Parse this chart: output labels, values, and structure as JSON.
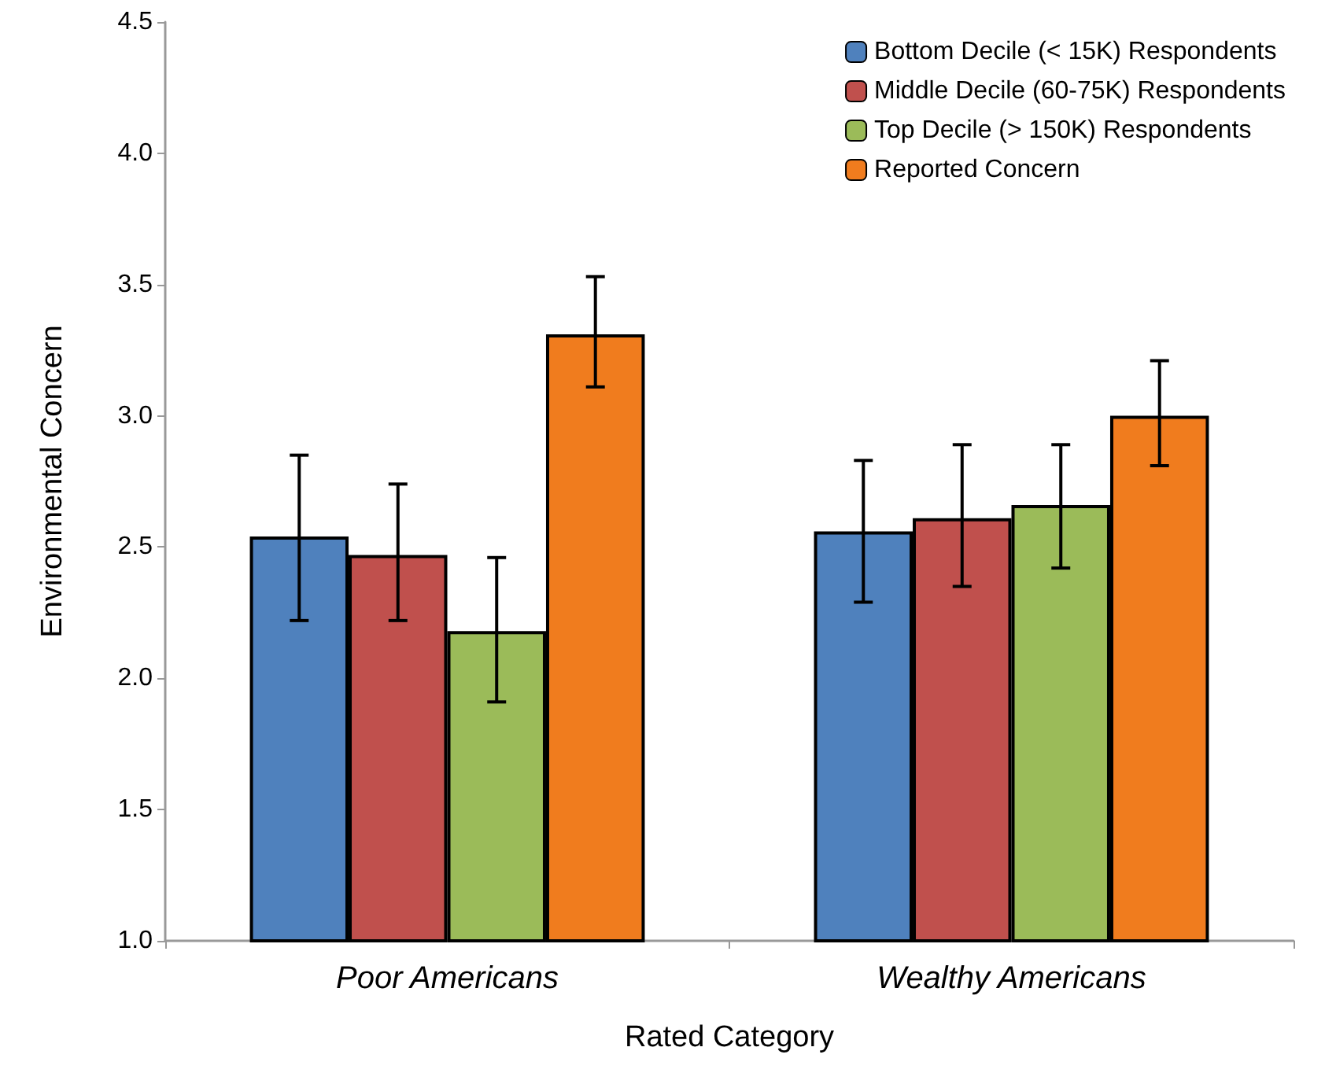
{
  "chart_data": {
    "type": "bar",
    "xlabel": "Rated Category",
    "ylabel": "Environmental Concern",
    "categories": [
      "Poor Americans",
      "Wealthy Americans"
    ],
    "series": [
      {
        "name": "Bottom Decile (< 15K) Respondents",
        "color": "#4f81bd",
        "values": [
          2.54,
          2.56
        ],
        "errors": [
          [
            2.22,
            2.85
          ],
          [
            2.29,
            2.83
          ]
        ]
      },
      {
        "name": "Middle Decile (60-75K) Respondents",
        "color": "#c0504d",
        "values": [
          2.47,
          2.61
        ],
        "errors": [
          [
            2.22,
            2.74
          ],
          [
            2.35,
            2.89
          ]
        ]
      },
      {
        "name": "Top Decile (> 150K) Respondents",
        "color": "#9bbb59",
        "values": [
          2.18,
          2.66
        ],
        "errors": [
          [
            1.91,
            2.46
          ],
          [
            2.42,
            2.89
          ]
        ]
      },
      {
        "name": "Reported Concern",
        "color": "#f07c1e",
        "values": [
          3.31,
          3.0
        ],
        "errors": [
          [
            3.11,
            3.53
          ],
          [
            2.81,
            3.21
          ]
        ]
      }
    ],
    "ylim": [
      1.0,
      4.5
    ],
    "yticks": [
      {
        "value": 1.0,
        "label": "1.0"
      },
      {
        "value": 1.5,
        "label": "1.5"
      },
      {
        "value": 2.0,
        "label": "2.0"
      },
      {
        "value": 2.5,
        "label": "2.5"
      },
      {
        "value": 3.0,
        "label": "3.0"
      },
      {
        "value": 3.5,
        "label": "3.5"
      },
      {
        "value": 4.0,
        "label": "4.0"
      },
      {
        "value": 4.5,
        "label": "4.5"
      }
    ],
    "grid": false,
    "legend": "top right"
  }
}
